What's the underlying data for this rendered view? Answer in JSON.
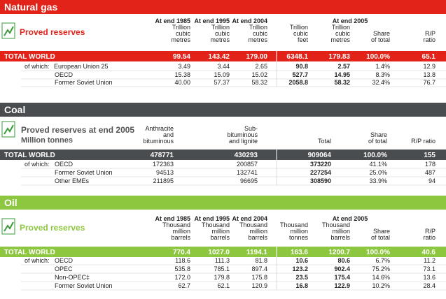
{
  "sections": [
    {
      "title": "Natural gas",
      "subtitle": [
        "Proved reserves"
      ],
      "header_group": "At end 2005",
      "columns": [
        [
          "At end 1985",
          "Trillion",
          "cubic",
          "metres"
        ],
        [
          "At end 1995",
          "Trillion",
          "cubic",
          "metres"
        ],
        [
          "At end 2004",
          "Trillion",
          "cubic",
          "metres"
        ],
        [
          "Trillion",
          "cubic",
          "feet"
        ],
        [
          "Trillion",
          "cubic",
          "metres"
        ],
        [
          "Share",
          "of total"
        ],
        [
          "R/P",
          "ratio"
        ]
      ],
      "total": {
        "label": "TOTAL WORLD",
        "values": [
          "99.54",
          "143.42",
          "179.00",
          "6348.1",
          "179.83",
          "100.0%",
          "65.1"
        ]
      },
      "of_which": "of which:",
      "rows": [
        {
          "label": "European Union 25",
          "values": [
            "3.49",
            "3.44",
            "2.65",
            "90.8",
            "2.57",
            "1.4%",
            "12.9"
          ]
        },
        {
          "label": "OECD",
          "values": [
            "15.38",
            "15.09",
            "15.02",
            "527.7",
            "14.95",
            "8.3%",
            "13.8"
          ]
        },
        {
          "label": "Former Soviet Union",
          "values": [
            "40.00",
            "57.37",
            "58.32",
            "2058.8",
            "58.32",
            "32.4%",
            "76.7"
          ]
        }
      ]
    },
    {
      "title": "Coal",
      "subtitle": [
        "Proved reserves at end 2005",
        "Million tonnes"
      ],
      "columns": [
        [
          "Anthracite",
          "and",
          "bituminous"
        ],
        [
          "Sub-",
          "bituminous",
          "and lignite"
        ],
        [
          "Total"
        ],
        [
          "Share",
          "of total"
        ],
        [
          "R/P ratio"
        ]
      ],
      "total": {
        "label": "TOTAL WORLD",
        "values": [
          "478771",
          "430293",
          "909064",
          "100.0%",
          "155"
        ]
      },
      "of_which": "of which:",
      "rows": [
        {
          "label": "OECD",
          "values": [
            "172363",
            "200857",
            "373220",
            "41.1%",
            "178"
          ]
        },
        {
          "label": "Former Soviet Union",
          "values": [
            "94513",
            "132741",
            "227254",
            "25.0%",
            "487"
          ]
        },
        {
          "label": "Other EMEs",
          "values": [
            "211895",
            "96695",
            "308590",
            "33.9%",
            "94"
          ]
        }
      ]
    },
    {
      "title": "Oil",
      "subtitle": [
        "Proved reserves"
      ],
      "header_group": "At end 2005",
      "columns": [
        [
          "At end 1985",
          "Thousand",
          "million",
          "barrels"
        ],
        [
          "At end 1995",
          "Thousand",
          "million",
          "barrels"
        ],
        [
          "At end 2004",
          "Thousand",
          "million",
          "barrels"
        ],
        [
          "Thousand",
          "million",
          "tonnes"
        ],
        [
          "Thousand",
          "million",
          "barrels"
        ],
        [
          "Share",
          "of total"
        ],
        [
          "R/P",
          "ratio"
        ]
      ],
      "total": {
        "label": "TOTAL WORLD",
        "values": [
          "770.4",
          "1027.0",
          "1194.1",
          "163.6",
          "1200.7",
          "100.0%",
          "40.6"
        ]
      },
      "of_which": "of which:",
      "rows": [
        {
          "label": "OECD",
          "values": [
            "118.6",
            "111.3",
            "81.8",
            "10.6",
            "80.6",
            "6.7%",
            "11.2"
          ]
        },
        {
          "label": "OPEC",
          "values": [
            "535.8",
            "785.1",
            "897.4",
            "123.2",
            "902.4",
            "75.2%",
            "73.1"
          ]
        },
        {
          "label": "Non-OPEC‡",
          "values": [
            "172.0",
            "179.8",
            "175.8",
            "23.5",
            "175.4",
            "14.6%",
            "13.6"
          ]
        },
        {
          "label": "Former Soviet Union",
          "values": [
            "62.7",
            "62.1",
            "120.9",
            "16.8",
            "122.9",
            "10.2%",
            "28.4"
          ]
        }
      ]
    }
  ]
}
